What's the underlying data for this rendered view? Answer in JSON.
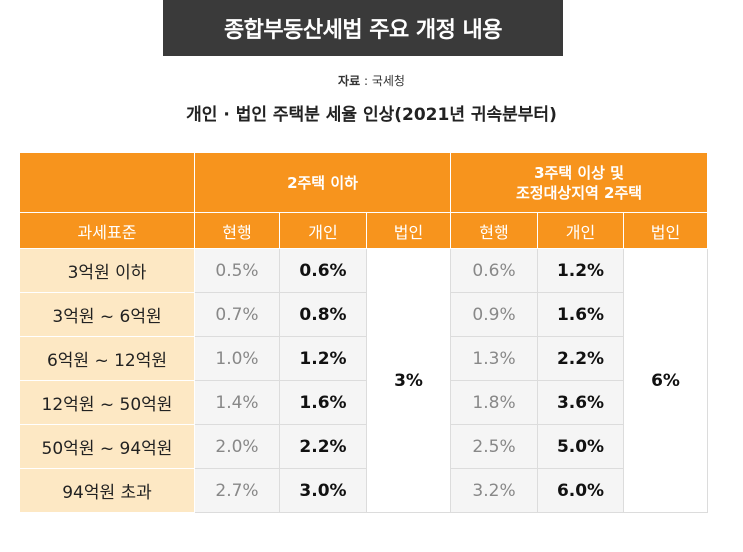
{
  "header": {
    "title": "종합부동산세법 주요 개정 내용",
    "source_label": "자료",
    "source_sep": " : ",
    "source_value": "국세청",
    "subtitle": "개인 · 법인 주택분 세율 인상(2021년 귀속분부터)"
  },
  "table": {
    "group_blank": "",
    "group1": "2주택 이하",
    "group2_line1": "3주택 이상 및",
    "group2_line2": "조정대상지역 2주택",
    "col_standard": "과세표준",
    "col_current": "현행",
    "col_individual": "개인",
    "col_corporate": "법인",
    "corp_rate_1": "3%",
    "corp_rate_2": "6%",
    "rows": [
      {
        "standard": "3억원 이하",
        "g1_current": "0.5%",
        "g1_individual": "0.6%",
        "g2_current": "0.6%",
        "g2_individual": "1.2%"
      },
      {
        "standard": "3억원 ~ 6억원",
        "g1_current": "0.7%",
        "g1_individual": "0.8%",
        "g2_current": "0.9%",
        "g2_individual": "1.6%"
      },
      {
        "standard": "6억원 ~ 12억원",
        "g1_current": "1.0%",
        "g1_individual": "1.2%",
        "g2_current": "1.3%",
        "g2_individual": "2.2%"
      },
      {
        "standard": "12억원 ~ 50억원",
        "g1_current": "1.4%",
        "g1_individual": "1.6%",
        "g2_current": "1.8%",
        "g2_individual": "3.6%"
      },
      {
        "standard": "50억원 ~ 94억원",
        "g1_current": "2.0%",
        "g1_individual": "2.2%",
        "g2_current": "2.5%",
        "g2_individual": "5.0%"
      },
      {
        "standard": "94억원 초과",
        "g1_current": "2.7%",
        "g1_individual": "3.0%",
        "g2_current": "3.2%",
        "g2_individual": "6.0%"
      }
    ]
  },
  "colors": {
    "header_orange": "#f7941d",
    "header_highlight": "#ffe45c",
    "standard_cell": "#fde8c4",
    "title_box": "#3a3a3a"
  }
}
